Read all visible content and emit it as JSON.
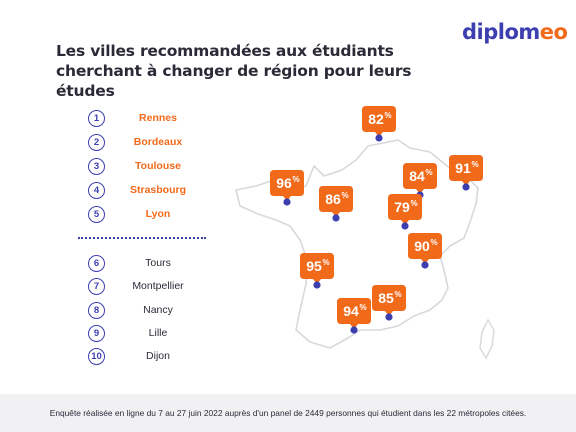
{
  "logo": {
    "base": "diplom",
    "accent": "eo"
  },
  "title": "Les villes recommandées aux étudiants cherchant à changer de région pour leurs études",
  "ranking": [
    {
      "rank": "1",
      "city": "Rennes"
    },
    {
      "rank": "2",
      "city": "Bordeaux"
    },
    {
      "rank": "3",
      "city": "Toulouse"
    },
    {
      "rank": "4",
      "city": "Strasbourg"
    },
    {
      "rank": "5",
      "city": "Lyon"
    },
    {
      "rank": "6",
      "city": "Tours"
    },
    {
      "rank": "7",
      "city": "Montpellier"
    },
    {
      "rank": "8",
      "city": "Nancy"
    },
    {
      "rank": "9",
      "city": "Lille"
    },
    {
      "rank": "10",
      "city": "Dijon"
    }
  ],
  "colors": {
    "brand": "#3d3fb0",
    "accent": "#f06a1a",
    "text": "#2b2b38",
    "footer_bg": "#f1f1f4"
  },
  "chart_data": {
    "type": "map",
    "unit": "%",
    "values": [
      {
        "value": "82",
        "unit": "%"
      },
      {
        "value": "84",
        "unit": "%"
      },
      {
        "value": "91",
        "unit": "%"
      },
      {
        "value": "96",
        "unit": "%"
      },
      {
        "value": "86",
        "unit": "%"
      },
      {
        "value": "79",
        "unit": "%"
      },
      {
        "value": "90",
        "unit": "%"
      },
      {
        "value": "95",
        "unit": "%"
      },
      {
        "value": "85",
        "unit": "%"
      },
      {
        "value": "94",
        "unit": "%"
      }
    ]
  },
  "footer": "Enquête réalisée en ligne du 7 au 27 juin 2022 auprès d'un panel de 2449 personnes qui étudient dans les 22 métropoles citées."
}
